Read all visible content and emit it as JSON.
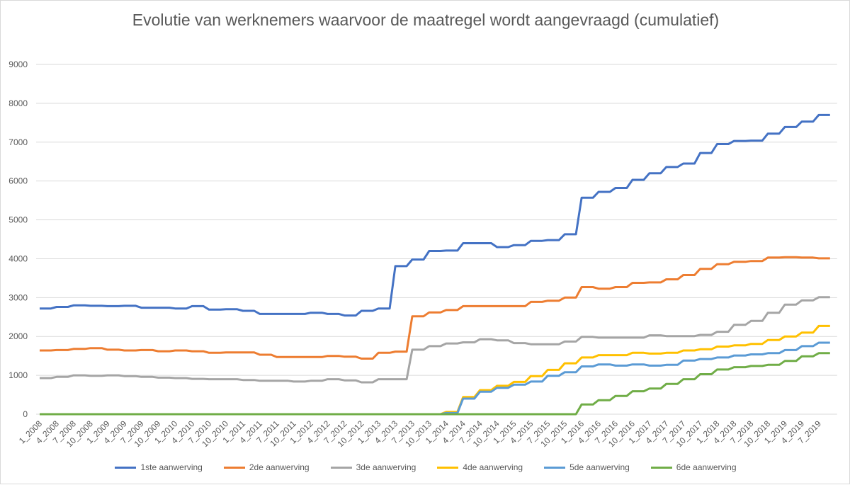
{
  "chart_data": {
    "type": "line",
    "title": "Evolutie van werknemers waarvoor de maatregel wordt aangevraagd (cumulatief)",
    "xlabel": "",
    "ylabel": "",
    "ylim": [
      0,
      9000
    ],
    "yticks": [
      0,
      1000,
      2000,
      3000,
      4000,
      5000,
      6000,
      7000,
      8000,
      9000
    ],
    "grid": true,
    "legend_position": "bottom",
    "categories": [
      "1_2008",
      "4_2008",
      "7_2008",
      "10_2008",
      "1_2009",
      "4_2009",
      "7_2009",
      "10_2009",
      "1_2010",
      "4_2010",
      "7_2010",
      "10_2010",
      "1_2011",
      "4_2011",
      "7_2011",
      "10_2011",
      "1_2012",
      "4_2012",
      "7_2012",
      "10_2012",
      "1_2013",
      "4_2013",
      "7_2013",
      "10_2013",
      "1_2014",
      "4_2014",
      "7_2014",
      "10_2014",
      "1_2015",
      "4_2015",
      "7_2015",
      "10_2015",
      "1_2016",
      "4_2016",
      "7_2016",
      "10_2016",
      "1_2017",
      "4_2017",
      "7_2017",
      "10_2017",
      "1_2018",
      "4_2018",
      "7_2018",
      "10_2018",
      "1_2019",
      "4_2019",
      "7_2019"
    ],
    "series": [
      {
        "name": "1ste aanwerving",
        "color": "#4472c4",
        "values": [
          2720,
          2760,
          2800,
          2790,
          2780,
          2790,
          2740,
          2740,
          2720,
          2780,
          2690,
          2700,
          2660,
          2580,
          2580,
          2580,
          2610,
          2580,
          2540,
          2660,
          2720,
          3810,
          3980,
          4200,
          4210,
          4400,
          4400,
          4300,
          4350,
          4460,
          4480,
          4630,
          5570,
          5720,
          5820,
          6030,
          6200,
          6360,
          6450,
          6720,
          6950,
          7030,
          7040,
          7220,
          7390,
          7530,
          7700
        ]
      },
      {
        "name": "2de aanwerving",
        "color": "#ed7d31",
        "values": [
          1640,
          1650,
          1680,
          1700,
          1660,
          1640,
          1650,
          1620,
          1640,
          1620,
          1580,
          1590,
          1590,
          1530,
          1470,
          1470,
          1470,
          1500,
          1480,
          1430,
          1580,
          1610,
          2520,
          2620,
          2680,
          2780,
          2780,
          2780,
          2780,
          2890,
          2920,
          3000,
          3270,
          3230,
          3270,
          3380,
          3390,
          3470,
          3580,
          3740,
          3860,
          3920,
          3940,
          4030,
          4040,
          4030,
          4010
        ]
      },
      {
        "name": "3de aanwerving",
        "color": "#a5a5a5",
        "values": [
          930,
          960,
          1000,
          990,
          1000,
          980,
          960,
          940,
          930,
          910,
          900,
          900,
          880,
          860,
          860,
          840,
          860,
          900,
          870,
          820,
          900,
          900,
          1660,
          1750,
          1820,
          1850,
          1930,
          1900,
          1830,
          1800,
          1800,
          1870,
          1990,
          1970,
          1970,
          1970,
          2030,
          2010,
          2010,
          2040,
          2120,
          2300,
          2400,
          2610,
          2820,
          2930,
          3010
        ]
      },
      {
        "name": "4de aanwerving",
        "color": "#ffc000",
        "values": [
          0,
          0,
          0,
          0,
          0,
          0,
          0,
          0,
          0,
          0,
          0,
          0,
          0,
          0,
          0,
          0,
          0,
          0,
          0,
          0,
          0,
          0,
          0,
          0,
          60,
          440,
          620,
          730,
          830,
          980,
          1140,
          1310,
          1460,
          1520,
          1520,
          1580,
          1560,
          1580,
          1640,
          1670,
          1740,
          1770,
          1810,
          1910,
          2000,
          2100,
          2270
        ]
      },
      {
        "name": "5de aanwerving",
        "color": "#5b9bd5",
        "values": [
          0,
          0,
          0,
          0,
          0,
          0,
          0,
          0,
          0,
          0,
          0,
          0,
          0,
          0,
          0,
          0,
          0,
          0,
          0,
          0,
          0,
          0,
          0,
          0,
          30,
          400,
          580,
          680,
          760,
          840,
          990,
          1080,
          1230,
          1280,
          1250,
          1280,
          1250,
          1270,
          1380,
          1420,
          1460,
          1510,
          1540,
          1570,
          1650,
          1750,
          1840
        ]
      },
      {
        "name": "6de aanwerving",
        "color": "#70ad47",
        "values": [
          0,
          0,
          0,
          0,
          0,
          0,
          0,
          0,
          0,
          0,
          0,
          0,
          0,
          0,
          0,
          0,
          0,
          0,
          0,
          0,
          0,
          0,
          0,
          0,
          0,
          0,
          0,
          0,
          0,
          0,
          0,
          0,
          250,
          360,
          470,
          590,
          660,
          780,
          900,
          1030,
          1150,
          1210,
          1240,
          1270,
          1370,
          1490,
          1570
        ]
      }
    ]
  }
}
